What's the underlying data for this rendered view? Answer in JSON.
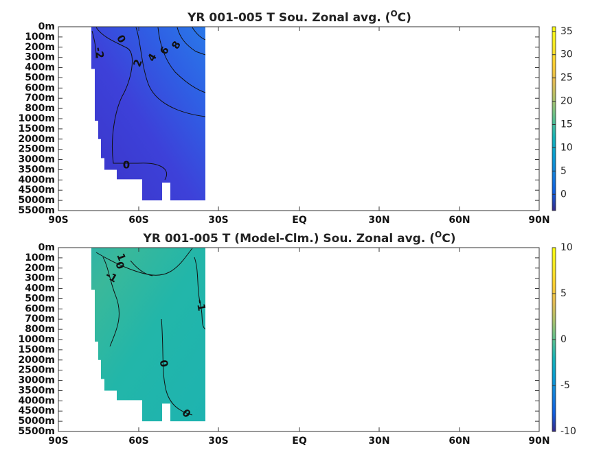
{
  "chart_data": [
    {
      "type": "heatmap",
      "title": "YR 001-005 T Sou. Zonal avg. (",
      "title_unit": "O",
      "title_end": "C)",
      "x_ticks": [
        "90S",
        "60S",
        "30S",
        "EQ",
        "30N",
        "60N",
        "90N"
      ],
      "y_ticks": [
        "0m",
        "100m",
        "200m",
        "300m",
        "400m",
        "500m",
        "600m",
        "700m",
        "800m",
        "1000m",
        "1500m",
        "2000m",
        "2500m",
        "3000m",
        "3500m",
        "4000m",
        "4500m",
        "5000m",
        "5500m"
      ],
      "colorbar": {
        "min": -3.5,
        "max": 36,
        "ticks": [
          35,
          30,
          25,
          20,
          15,
          10,
          5,
          0
        ]
      },
      "data_extent": {
        "lat": [
          "78S",
          "35S"
        ],
        "depth": [
          "0m",
          "5000m"
        ]
      },
      "contour_labels": [
        "0",
        "-2",
        "2",
        "4",
        "6",
        "8",
        "0"
      ]
    },
    {
      "type": "heatmap",
      "title": "YR 001-005 T (Model-Clm.) Sou. Zonal avg. (",
      "title_unit": "O",
      "title_end": "C)",
      "x_ticks": [
        "90S",
        "60S",
        "30S",
        "EQ",
        "30N",
        "60N",
        "90N"
      ],
      "y_ticks": [
        "0m",
        "100m",
        "200m",
        "300m",
        "400m",
        "500m",
        "600m",
        "700m",
        "800m",
        "1000m",
        "1500m",
        "2000m",
        "2500m",
        "3000m",
        "3500m",
        "4000m",
        "4500m",
        "5000m",
        "5500m"
      ],
      "colorbar": {
        "min": -10,
        "max": 10,
        "ticks": [
          10,
          5,
          0,
          -5,
          -10
        ]
      },
      "data_extent": {
        "lat": [
          "78S",
          "35S"
        ],
        "depth": [
          "0m",
          "5000m"
        ]
      },
      "contour_labels": [
        "1",
        "0",
        "-1",
        "-1",
        "0",
        "0"
      ]
    }
  ]
}
